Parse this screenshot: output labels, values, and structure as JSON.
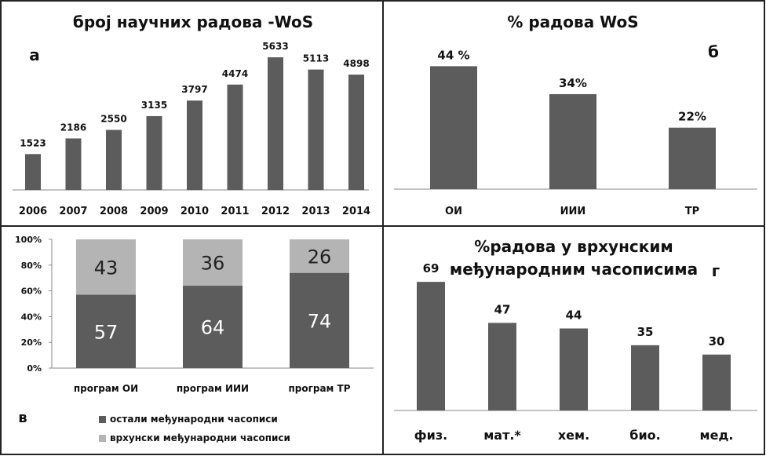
{
  "chart_data": [
    {
      "type": "bar",
      "panel": "а",
      "title": "број научних радова -WoS",
      "categories": [
        "2006",
        "2007",
        "2008",
        "2009",
        "2010",
        "2011",
        "2012",
        "2013",
        "2014"
      ],
      "values": [
        1523,
        2186,
        2550,
        3135,
        3797,
        4474,
        5633,
        5113,
        4898
      ],
      "data_labels": [
        "1523",
        "2186",
        "2550",
        "3135",
        "3797",
        "4474",
        "5633",
        "5113",
        "4898"
      ],
      "ylim": [
        0,
        6000
      ],
      "grid": false,
      "color": "#5c5c5c"
    },
    {
      "type": "bar",
      "panel": "б",
      "title": "% радова WoS",
      "categories": [
        "ОИ",
        "ИИИ",
        "ТР"
      ],
      "values": [
        44,
        34,
        22
      ],
      "data_labels": [
        "44 %",
        "34%",
        "22%"
      ],
      "ylim": [
        0,
        50
      ],
      "grid": false,
      "color": "#5c5c5c"
    },
    {
      "type": "bar",
      "stacked": true,
      "percent": true,
      "panel": "в",
      "categories": [
        "програм ОИ",
        "програм ИИИ",
        "програм ТР"
      ],
      "y_ticks": [
        "0%",
        "20%",
        "40%",
        "60%",
        "80%",
        "100%"
      ],
      "ylim": [
        0,
        100
      ],
      "series": [
        {
          "name": "остали међународни часописи",
          "values": [
            57,
            64,
            74
          ],
          "labels": [
            "57",
            "64",
            "74"
          ],
          "color": "#5c5c5c"
        },
        {
          "name": "врхунски међународни часописи",
          "values": [
            43,
            36,
            26
          ],
          "labels": [
            "43",
            "36",
            "26"
          ],
          "color": "#b4b4b4"
        }
      ],
      "legend_position": "bottom"
    },
    {
      "type": "bar",
      "panel": "г",
      "title_lines": [
        "%радова у врхунским",
        "међународним часописима"
      ],
      "categories": [
        "физ.",
        "мат.*",
        "хем.",
        "био.",
        "мед."
      ],
      "values": [
        69,
        47,
        44,
        35,
        30
      ],
      "data_labels": [
        "69",
        "47",
        "44",
        "35",
        "30"
      ],
      "ylim": [
        0,
        80
      ],
      "grid": false,
      "color": "#5c5c5c"
    }
  ]
}
